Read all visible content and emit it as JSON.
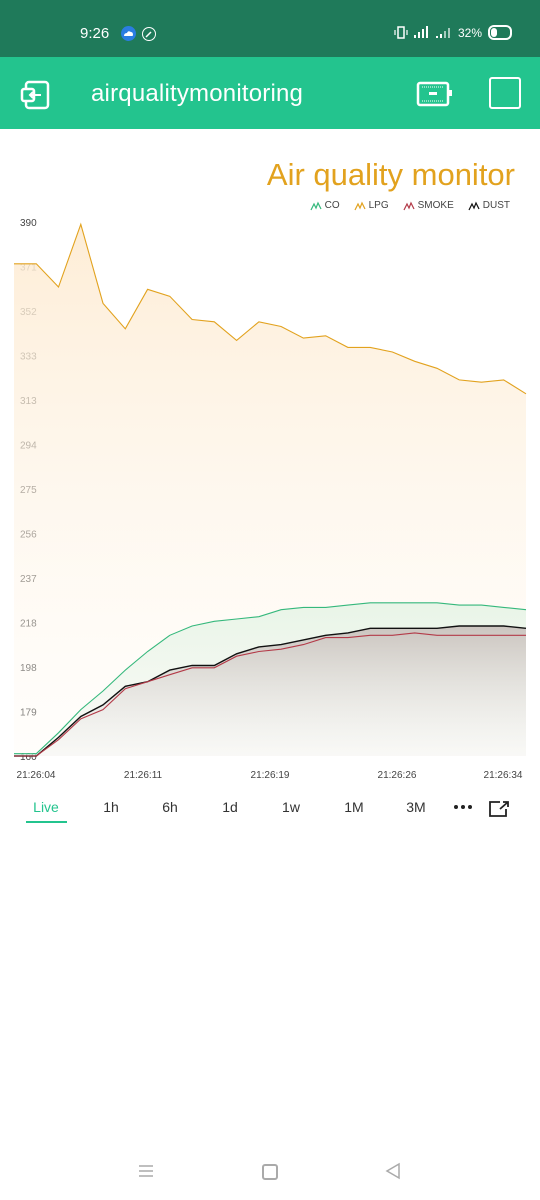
{
  "status_bar": {
    "time": "9:26",
    "battery": "32%",
    "icons": [
      "cloud-icon",
      "sync-icon",
      "vibrate-icon",
      "signal-icon",
      "battery-icon"
    ]
  },
  "header": {
    "title": "airqualitymonitoring",
    "icons": [
      "back-exit-icon",
      "device-icon",
      "square-icon"
    ]
  },
  "chart_data": {
    "type": "area",
    "title": "Air quality monitor",
    "legend_position": "top-right",
    "series": [
      {
        "name": "CO",
        "color": "#35b87c",
        "fill": "#eef8ef",
        "values": [
          161,
          161,
          170,
          180,
          188,
          197,
          205,
          212,
          216,
          218,
          219,
          220,
          223,
          224,
          224,
          225,
          226,
          226,
          226,
          226,
          225,
          225,
          224,
          223
        ]
      },
      {
        "name": "LPG",
        "color": "#e2a21e",
        "fill": "#fdf0dc",
        "values": [
          372,
          372,
          362,
          389,
          355,
          344,
          361,
          358,
          348,
          347,
          339,
          347,
          345,
          340,
          341,
          336,
          336,
          334,
          330,
          327,
          322,
          321,
          322,
          316
        ]
      },
      {
        "name": "SMOKE",
        "color": "#b33a48",
        "fill": "#f6eaea",
        "values": [
          160,
          160,
          167,
          176,
          180,
          189,
          192,
          195,
          198,
          198,
          203,
          205,
          206,
          208,
          211,
          211,
          212,
          212,
          213,
          212,
          212,
          212,
          212,
          212
        ]
      },
      {
        "name": "DUST",
        "color": "#111111",
        "fill": "#d9d4d0",
        "values": [
          160,
          160,
          168,
          177,
          182,
          190,
          192,
          197,
          199,
          199,
          204,
          207,
          208,
          210,
          212,
          213,
          215,
          215,
          215,
          215,
          216,
          216,
          216,
          215
        ]
      }
    ],
    "ylim": [
      160,
      390
    ],
    "y_ticks": [
      "390",
      "371",
      "352",
      "333",
      "313",
      "294",
      "275",
      "256",
      "237",
      "218",
      "198",
      "179",
      "160"
    ],
    "x_ticks": [
      "21:26:04",
      "21:26:11",
      "21:26:19",
      "21:26:26",
      "21:26:34"
    ],
    "grid": false
  },
  "tabs": {
    "items": [
      {
        "label": "Live"
      },
      {
        "label": "1h"
      },
      {
        "label": "6h"
      },
      {
        "label": "1d"
      },
      {
        "label": "1w"
      },
      {
        "label": "1M"
      },
      {
        "label": "3M"
      }
    ],
    "active": "Live",
    "icons": [
      "more-dots-icon",
      "expand-icon"
    ]
  },
  "nav_bar": {
    "icons": [
      "menu-lines-icon",
      "home-square-icon",
      "back-triangle-icon"
    ]
  }
}
